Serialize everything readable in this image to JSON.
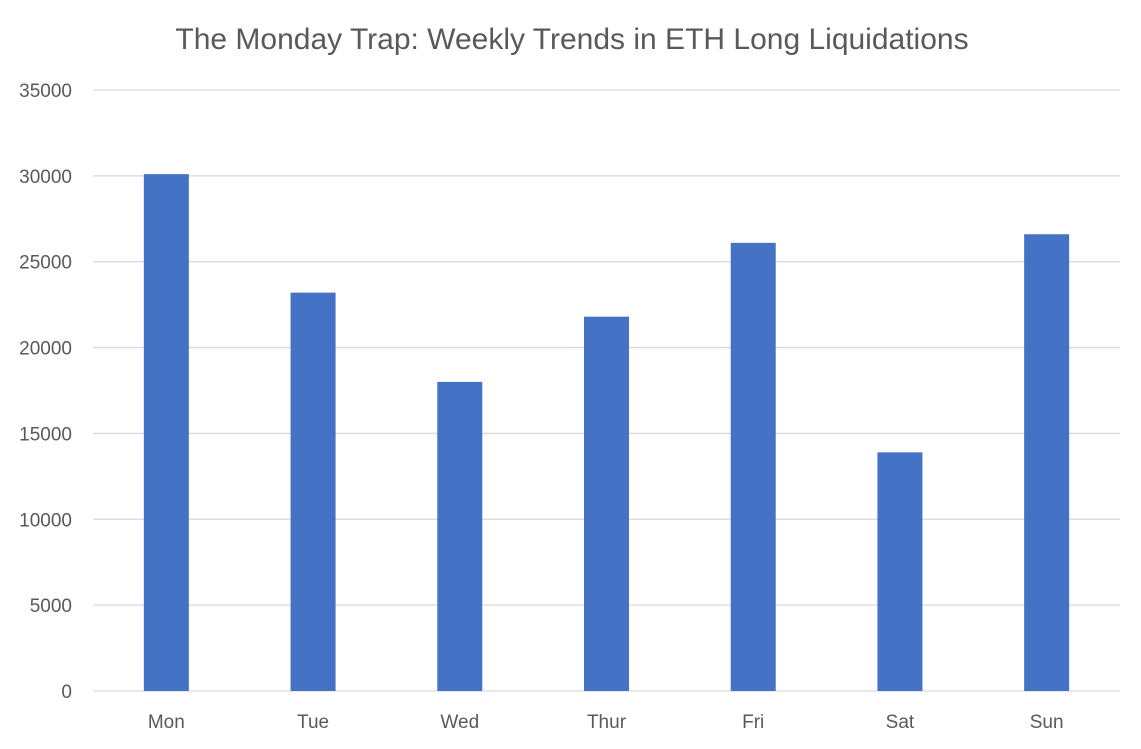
{
  "chart_data": {
    "type": "bar",
    "title": "The Monday Trap: Weekly Trends in ETH Long Liquidations",
    "xlabel": "",
    "ylabel": "",
    "categories": [
      "Mon",
      "Tue",
      "Wed",
      "Thur",
      "Fri",
      "Sat",
      "Sun"
    ],
    "values": [
      30100,
      23200,
      18000,
      21800,
      26100,
      13900,
      26600
    ],
    "ylim": [
      0,
      35000
    ],
    "yticks": [
      0,
      5000,
      10000,
      15000,
      20000,
      25000,
      30000,
      35000
    ],
    "ytick_labels": [
      "0",
      "5000",
      "10000",
      "15000",
      "20000",
      "25000",
      "30000",
      "35000"
    ],
    "bar_color": "#4472C4",
    "grid": true,
    "legend": "none"
  }
}
